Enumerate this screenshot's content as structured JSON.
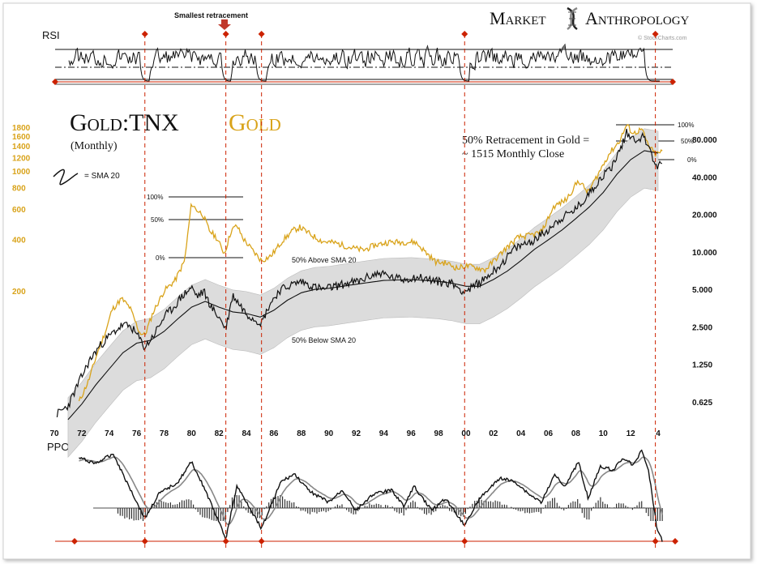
{
  "brand": {
    "word1": "Market",
    "word2": "Anthropology",
    "credit": "© StockCharts.com"
  },
  "panels": {
    "rsi_label": "RSI",
    "ppo_label": "PPO"
  },
  "annotations": {
    "smallest_retracement": "Smallest retracement",
    "main_title_black": "Gold:TNX",
    "main_title_gold": "Gold",
    "subtitle": "(Monthly)",
    "sma_legend": "= SMA 20",
    "retracement_line1": "50% Retracement in Gold =",
    "retracement_line2": "~ 1515 Monthly Close",
    "above_band": "50% Above SMA 20",
    "below_band": "50% Below SMA 20",
    "fib_early": [
      "100%",
      "50%",
      "0%"
    ],
    "fib_late": [
      "100%",
      "50%",
      "0%"
    ]
  },
  "colors": {
    "gold": "#d9a31a",
    "ratio": "#111111",
    "band": "#dcdcdc",
    "marker": "#cc2200",
    "signal": "#888888"
  },
  "chart_data": {
    "type": "line",
    "x_axis": {
      "tick_labels": [
        "70",
        "72",
        "74",
        "76",
        "78",
        "80",
        "82",
        "84",
        "86",
        "88",
        "90",
        "92",
        "94",
        "96",
        "98",
        "00",
        "02",
        "04",
        "06",
        "08",
        "10",
        "12",
        "4"
      ],
      "tick_years": [
        1970,
        1972,
        1974,
        1976,
        1978,
        1980,
        1982,
        1984,
        1986,
        1988,
        1990,
        1992,
        1994,
        1996,
        1998,
        2000,
        2002,
        2004,
        2006,
        2008,
        2010,
        2012,
        2014
      ]
    },
    "y_axis_right": {
      "scale": "log",
      "tick_labels": [
        "80.000",
        "40.000",
        "20.000",
        "10.000",
        "5.000",
        "2.500",
        "1.250",
        "0.625"
      ],
      "tick_values": [
        80,
        40,
        20,
        10,
        5,
        2.5,
        1.25,
        0.625
      ]
    },
    "y_axis_left": {
      "scale": "log",
      "tick_labels": [
        "1800",
        "1600",
        "1400",
        "1200",
        "1000",
        "800",
        "600",
        "400",
        "200"
      ],
      "tick_values": [
        1800,
        1600,
        1400,
        1200,
        1000,
        800,
        600,
        400,
        200
      ]
    },
    "marker_years": [
      1976.6,
      1982.5,
      1985.1,
      1999.9,
      2013.8
    ],
    "series": [
      {
        "name": "Gold",
        "axis": "left",
        "x": [
          1971.8,
          1972.5,
          1973.2,
          1973.8,
          1974.2,
          1974.9,
          1975.5,
          1976.2,
          1976.6,
          1977.2,
          1978.0,
          1978.8,
          1979.5,
          1980.0,
          1980.3,
          1980.8,
          1981.3,
          1981.8,
          1982.4,
          1982.9,
          1983.3,
          1983.8,
          1984.5,
          1985.1,
          1985.8,
          1986.6,
          1987.4,
          1987.9,
          1988.6,
          1989.5,
          1990.5,
          1991.5,
          1992.5,
          1993.4,
          1994.4,
          1995.5,
          1996.3,
          1997.0,
          1997.8,
          1998.6,
          1999.4,
          1999.9,
          2000.6,
          2001.4,
          2002.2,
          2003.0,
          2003.8,
          2004.6,
          2005.5,
          2006.4,
          2007.3,
          2008.2,
          2008.9,
          2009.6,
          2010.4,
          2011.2,
          2011.7,
          2012.2,
          2012.8,
          2013.3,
          2013.8,
          2014.3
        ],
        "values": [
          45,
          60,
          90,
          120,
          155,
          180,
          160,
          115,
          110,
          150,
          200,
          230,
          300,
          650,
          600,
          560,
          450,
          410,
          330,
          450,
          480,
          400,
          340,
          300,
          320,
          390,
          450,
          470,
          430,
          390,
          380,
          360,
          345,
          370,
          385,
          385,
          385,
          340,
          295,
          290,
          270,
          280,
          275,
          265,
          310,
          360,
          410,
          420,
          440,
          620,
          680,
          880,
          750,
          950,
          1250,
          1500,
          1850,
          1650,
          1750,
          1400,
          1250,
          1300
        ]
      },
      {
        "name": "Gold:TNX",
        "axis": "right",
        "x": [
          1970.2,
          1971.0,
          1971.8,
          1972.5,
          1973.2,
          1973.8,
          1974.4,
          1975.0,
          1975.6,
          1976.1,
          1976.6,
          1977.3,
          1978.0,
          1978.7,
          1979.3,
          1980.0,
          1980.4,
          1980.9,
          1981.5,
          1982.0,
          1982.5,
          1983.0,
          1983.5,
          1984.0,
          1984.6,
          1985.1,
          1985.7,
          1986.4,
          1987.2,
          1988.0,
          1988.8,
          1989.6,
          1990.5,
          1991.4,
          1992.2,
          1993.0,
          1993.8,
          1994.6,
          1995.5,
          1996.4,
          1997.3,
          1998.2,
          1999.0,
          1999.5,
          1999.9,
          2000.5,
          2001.2,
          2002.0,
          2002.8,
          2003.5,
          2004.2,
          2005.0,
          2005.8,
          2006.6,
          2007.4,
          2008.0,
          2008.6,
          2009.2,
          2009.9,
          2010.6,
          2011.2,
          2011.7,
          2012.3,
          2012.9,
          2013.4,
          2013.8,
          2014.3
        ],
        "values": [
          0.5,
          0.58,
          0.9,
          1.3,
          1.7,
          2.0,
          2.3,
          2.6,
          2.5,
          2.1,
          1.7,
          2.2,
          3.0,
          3.6,
          4.4,
          5.2,
          4.4,
          4.8,
          3.5,
          3.0,
          2.4,
          4.5,
          3.8,
          3.2,
          2.9,
          2.7,
          3.8,
          4.9,
          5.4,
          5.8,
          5.3,
          5.0,
          5.3,
          5.6,
          5.8,
          6.4,
          6.8,
          6.2,
          6.0,
          6.3,
          6.0,
          5.7,
          5.6,
          5.1,
          4.8,
          5.2,
          5.9,
          7.0,
          8.5,
          10.5,
          11.5,
          12.5,
          14.5,
          17.5,
          20.0,
          22.0,
          26.0,
          32.0,
          40.0,
          48.0,
          65.0,
          90.0,
          80.0,
          84.0,
          70.0,
          47.0,
          52.0
        ]
      },
      {
        "name": "SMA 20",
        "axis": "right",
        "x": [
          1971.0,
          1972.0,
          1973.0,
          1974.0,
          1975.0,
          1976.0,
          1977.0,
          1978.0,
          1979.0,
          1980.0,
          1981.0,
          1982.0,
          1983.0,
          1984.0,
          1985.0,
          1986.0,
          1987.0,
          1988.0,
          1989.0,
          1990.0,
          1992.0,
          1994.0,
          1996.0,
          1998.0,
          1999.0,
          2000.0,
          2001.0,
          2002.0,
          2003.0,
          2004.0,
          2005.0,
          2006.0,
          2007.0,
          2008.0,
          2009.0,
          2010.0,
          2011.0,
          2012.0,
          2013.0,
          2014.0
        ],
        "values": [
          0.45,
          0.6,
          0.85,
          1.15,
          1.55,
          1.85,
          1.95,
          2.3,
          2.9,
          3.6,
          4.0,
          3.6,
          3.3,
          3.2,
          3.0,
          3.4,
          4.1,
          4.7,
          5.0,
          5.1,
          5.5,
          5.9,
          6.0,
          5.8,
          5.6,
          5.3,
          5.3,
          6.0,
          7.0,
          8.5,
          10.5,
          12.5,
          15.0,
          18.5,
          23.0,
          30.0,
          42.0,
          55.0,
          65.0,
          62.0
        ]
      }
    ],
    "rsi": {
      "reference_levels": [
        "overbought",
        "midline",
        "oversold"
      ]
    }
  }
}
